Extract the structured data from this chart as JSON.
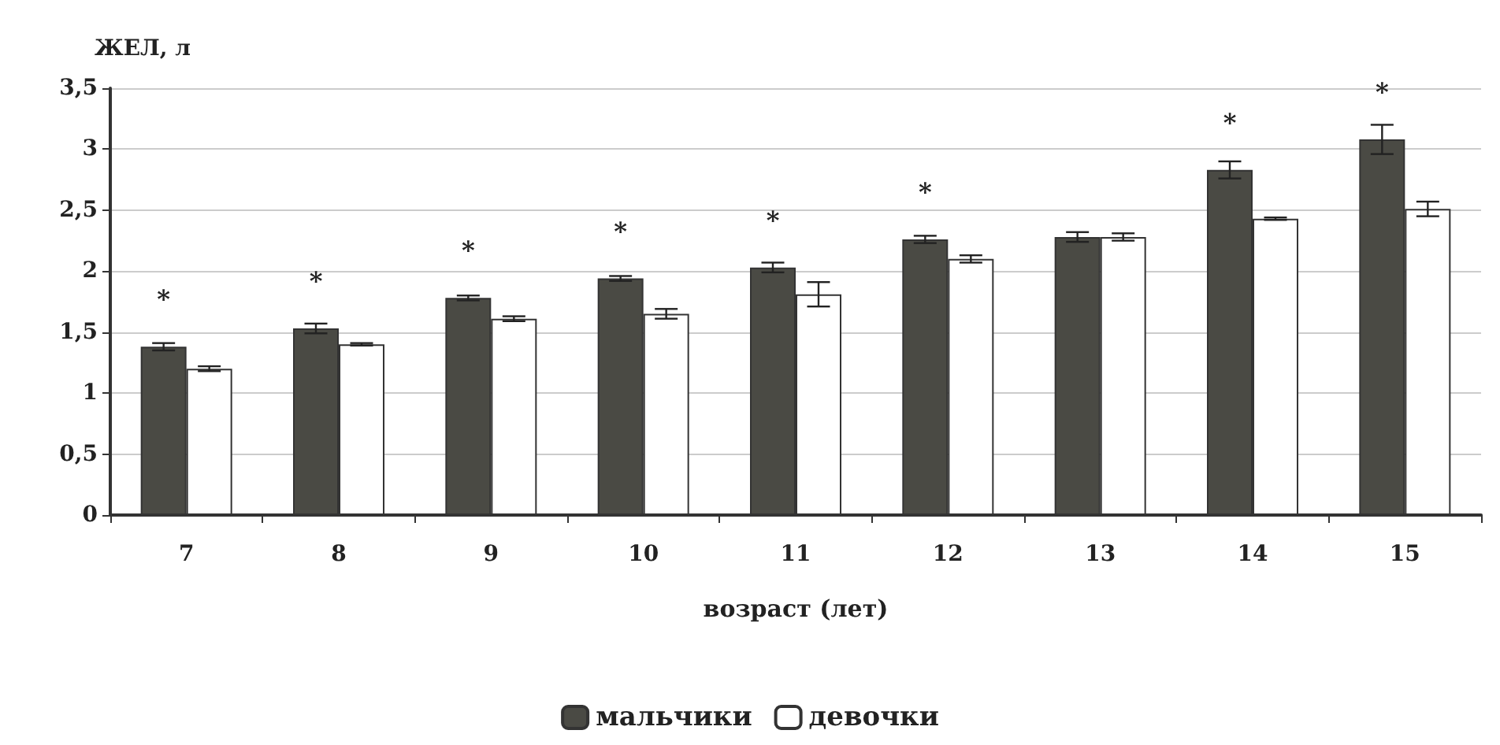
{
  "chart_data": {
    "type": "bar",
    "ylabel": "ЖЕЛ, л",
    "xlabel": "возраст (лет)",
    "categories": [
      "7",
      "8",
      "9",
      "10",
      "11",
      "12",
      "13",
      "14",
      "15"
    ],
    "series": [
      {
        "name": "мальчики",
        "color": "#4a4a44",
        "values": [
          1.38,
          1.53,
          1.78,
          1.94,
          2.03,
          2.26,
          2.28,
          2.83,
          3.08
        ],
        "errors": [
          0.03,
          0.04,
          0.02,
          0.02,
          0.04,
          0.03,
          0.04,
          0.07,
          0.12
        ]
      },
      {
        "name": "девочки",
        "color": "#ffffff",
        "values": [
          1.2,
          1.4,
          1.61,
          1.65,
          1.81,
          2.1,
          2.28,
          2.43,
          2.51
        ],
        "errors": [
          0.02,
          0.01,
          0.02,
          0.04,
          0.1,
          0.03,
          0.03,
          0.01,
          0.06
        ]
      }
    ],
    "ylim": [
      0,
      3.5
    ],
    "yticks": [
      {
        "value": 0,
        "label": "0"
      },
      {
        "value": 0.5,
        "label": "0,5"
      },
      {
        "value": 1,
        "label": "1"
      },
      {
        "value": 1.5,
        "label": "1,5"
      },
      {
        "value": 2,
        "label": "2"
      },
      {
        "value": 2.5,
        "label": "2,5"
      },
      {
        "value": 3,
        "label": "3"
      },
      {
        "value": 3.5,
        "label": "3,5"
      }
    ],
    "annotations": [
      {
        "text": "*",
        "x": "7",
        "y": 1.38
      },
      {
        "text": "*",
        "x": "8",
        "y": 1.53
      },
      {
        "text": "*",
        "x": "9",
        "y": 1.78
      },
      {
        "text": "*",
        "x": "10",
        "y": 1.94
      },
      {
        "text": "*",
        "x": "11",
        "y": 2.03
      },
      {
        "text": "*",
        "x": "12",
        "y": 2.26
      },
      {
        "text": "*",
        "x": "14",
        "y": 2.83
      },
      {
        "text": "*",
        "x": "15",
        "y": 3.08
      }
    ],
    "grid": "y",
    "legend": "bottom"
  }
}
